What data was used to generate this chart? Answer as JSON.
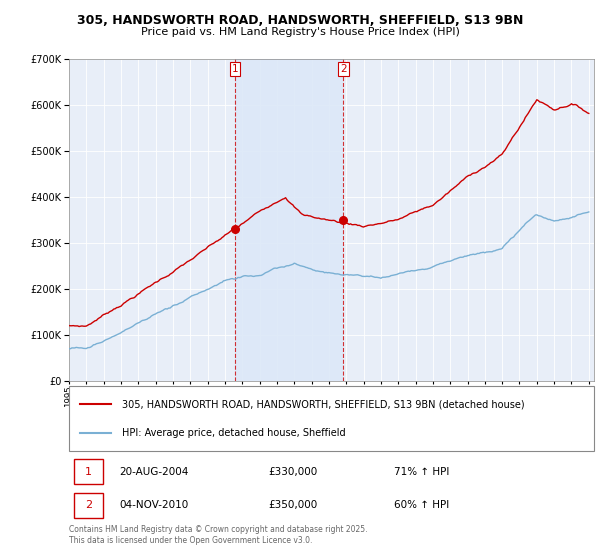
{
  "title_line1": "305, HANDSWORTH ROAD, HANDSWORTH, SHEFFIELD, S13 9BN",
  "title_line2": "Price paid vs. HM Land Registry's House Price Index (HPI)",
  "legend_line1": "305, HANDSWORTH ROAD, HANDSWORTH, SHEFFIELD, S13 9BN (detached house)",
  "legend_line2": "HPI: Average price, detached house, Sheffield",
  "footnote": "Contains HM Land Registry data © Crown copyright and database right 2025.\nThis data is licensed under the Open Government Licence v3.0.",
  "sale1_date": "20-AUG-2004",
  "sale1_price": 330000,
  "sale1_hpi": "71% ↑ HPI",
  "sale1_label": "1",
  "sale2_date": "04-NOV-2010",
  "sale2_price": 350000,
  "sale2_hpi": "60% ↑ HPI",
  "sale2_label": "2",
  "red_color": "#cc0000",
  "blue_color": "#7ab0d4",
  "sale_marker_color": "#cc0000",
  "background_color": "#e8eef8",
  "shade_color": "#dce8f5",
  "ylim": [
    0,
    700000
  ],
  "yticks": [
    0,
    100000,
    200000,
    300000,
    400000,
    500000,
    600000,
    700000
  ],
  "x_start_year": 1995,
  "x_end_year": 2025,
  "sale1_year": 2004.6,
  "sale2_year": 2010.84
}
